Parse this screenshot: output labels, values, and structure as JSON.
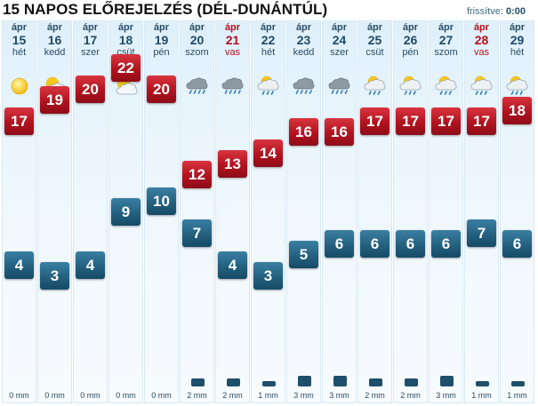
{
  "header": {
    "title": "15 NAPOS ELŐREJELZÉS (DÉL-DUNÁNTÚL)",
    "updated_label": "frissítve:",
    "updated_time": "0:00"
  },
  "colors": {
    "high": "#b0131f",
    "low": "#23617f",
    "weekend": "#b40f1e"
  },
  "days": [
    {
      "month": "ápr",
      "day": "15",
      "weekday": "hét",
      "weekend": false,
      "icon": "sun-icon",
      "high": "17",
      "low": "4",
      "high_val": 17,
      "low_val": 4,
      "precip": "0 mm",
      "precip_val": 0
    },
    {
      "month": "ápr",
      "day": "16",
      "weekday": "kedd",
      "weekend": false,
      "icon": "partly-cloudy-icon",
      "high": "19",
      "low": "3",
      "high_val": 19,
      "low_val": 3,
      "precip": "0 mm",
      "precip_val": 0
    },
    {
      "month": "ápr",
      "day": "17",
      "weekday": "szer",
      "weekend": false,
      "icon": "partly-cloudy-icon",
      "high": "20",
      "low": "4",
      "high_val": 20,
      "low_val": 4,
      "precip": "0 mm",
      "precip_val": 0
    },
    {
      "month": "ápr",
      "day": "18",
      "weekday": "csüt",
      "weekend": false,
      "icon": "partly-cloudy-icon",
      "high": "22",
      "low": "9",
      "high_val": 22,
      "low_val": 9,
      "precip": "0 mm",
      "precip_val": 0
    },
    {
      "month": "ápr",
      "day": "19",
      "weekday": "pén",
      "weekend": false,
      "icon": "windy-cloud-icon",
      "high": "20",
      "low": "10",
      "high_val": 20,
      "low_val": 10,
      "precip": "0 mm",
      "precip_val": 0
    },
    {
      "month": "ápr",
      "day": "20",
      "weekday": "szom",
      "weekend": false,
      "icon": "rain-icon",
      "high": "12",
      "low": "7",
      "high_val": 12,
      "low_val": 7,
      "precip": "2 mm",
      "precip_val": 2
    },
    {
      "month": "ápr",
      "day": "21",
      "weekday": "vas",
      "weekend": true,
      "icon": "rain-icon",
      "high": "13",
      "low": "4",
      "high_val": 13,
      "low_val": 4,
      "precip": "2 mm",
      "precip_val": 2
    },
    {
      "month": "ápr",
      "day": "22",
      "weekday": "hét",
      "weekend": false,
      "icon": "sun-rain-icon",
      "high": "14",
      "low": "3",
      "high_val": 14,
      "low_val": 3,
      "precip": "1 mm",
      "precip_val": 1
    },
    {
      "month": "ápr",
      "day": "23",
      "weekday": "kedd",
      "weekend": false,
      "icon": "rain-icon",
      "high": "16",
      "low": "5",
      "high_val": 16,
      "low_val": 5,
      "precip": "3 mm",
      "precip_val": 3
    },
    {
      "month": "ápr",
      "day": "24",
      "weekday": "szer",
      "weekend": false,
      "icon": "rain-icon",
      "high": "16",
      "low": "6",
      "high_val": 16,
      "low_val": 6,
      "precip": "3 mm",
      "precip_val": 3
    },
    {
      "month": "ápr",
      "day": "25",
      "weekday": "csüt",
      "weekend": false,
      "icon": "sun-rain-icon",
      "high": "17",
      "low": "6",
      "high_val": 17,
      "low_val": 6,
      "precip": "2 mm",
      "precip_val": 2
    },
    {
      "month": "ápr",
      "day": "26",
      "weekday": "pén",
      "weekend": false,
      "icon": "sun-rain-icon",
      "high": "17",
      "low": "6",
      "high_val": 17,
      "low_val": 6,
      "precip": "2 mm",
      "precip_val": 2
    },
    {
      "month": "ápr",
      "day": "27",
      "weekday": "szom",
      "weekend": false,
      "icon": "sun-rain-icon",
      "high": "17",
      "low": "6",
      "high_val": 17,
      "low_val": 6,
      "precip": "3 mm",
      "precip_val": 3
    },
    {
      "month": "ápr",
      "day": "28",
      "weekday": "vas",
      "weekend": true,
      "icon": "sun-rain-icon",
      "high": "17",
      "low": "7",
      "high_val": 17,
      "low_val": 7,
      "precip": "1 mm",
      "precip_val": 1
    },
    {
      "month": "ápr",
      "day": "29",
      "weekday": "hét",
      "weekend": false,
      "icon": "sun-rain-icon",
      "high": "18",
      "low": "6",
      "high_val": 18,
      "low_val": 6,
      "precip": "1 mm",
      "precip_val": 1
    }
  ]
}
